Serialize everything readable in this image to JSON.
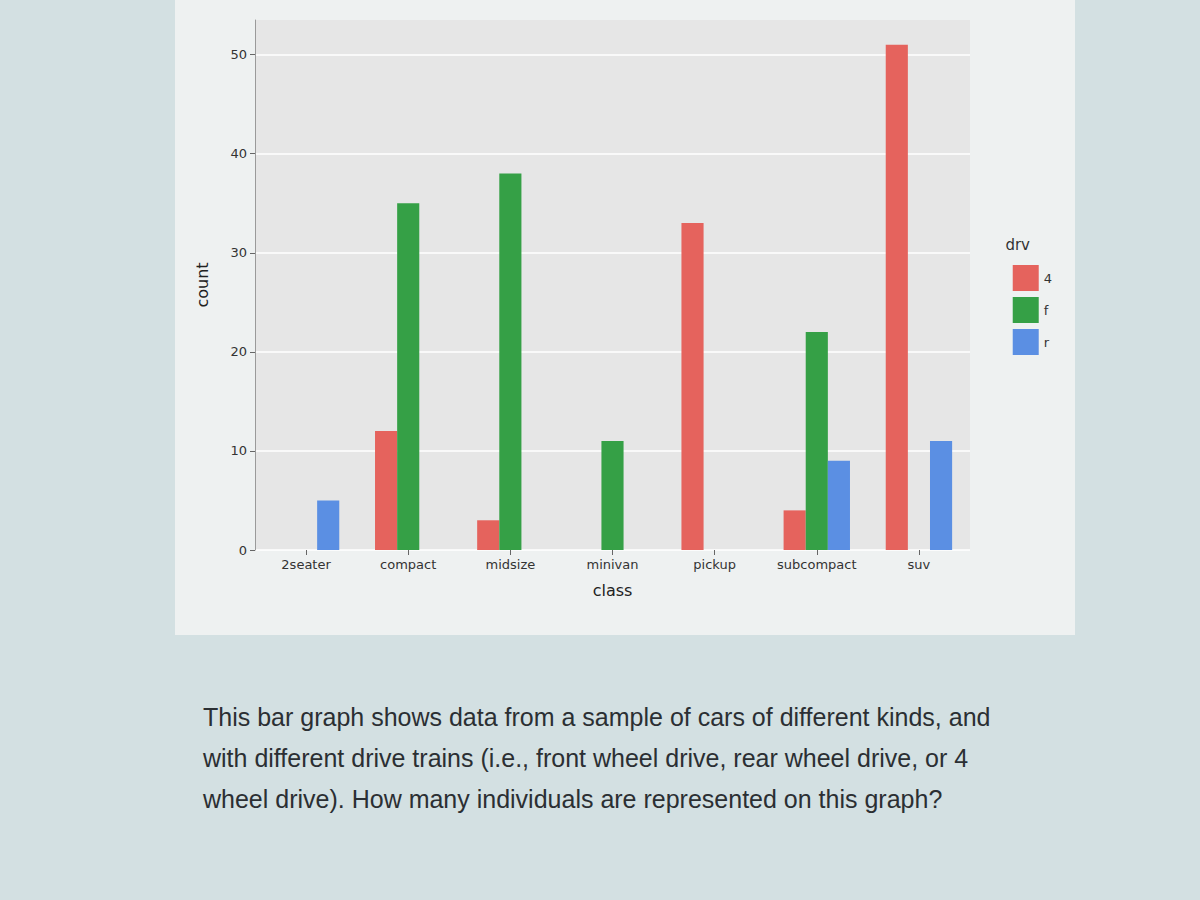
{
  "chart_data": {
    "type": "bar",
    "x_label": "class",
    "y_label": "count",
    "legend_title": "drv",
    "categories": [
      "2seater",
      "compact",
      "midsize",
      "minivan",
      "pickup",
      "subcompact",
      "suv"
    ],
    "series": [
      {
        "name": "4",
        "color": "#e5635d",
        "values": [
          null,
          12,
          3,
          null,
          33,
          4,
          51
        ]
      },
      {
        "name": "f",
        "color": "#35a046",
        "values": [
          null,
          35,
          38,
          11,
          null,
          22,
          null
        ]
      },
      {
        "name": "r",
        "color": "#5b8fe3",
        "values": [
          5,
          null,
          null,
          null,
          null,
          9,
          11
        ]
      }
    ],
    "ylim": [
      0,
      53.5
    ],
    "yticks": [
      0,
      10,
      20,
      30,
      40,
      50
    ],
    "grid": true,
    "legend": "right"
  },
  "caption": "This bar graph shows data from a sample of cars of different kinds, and with different drive trains (i.e., front wheel drive, rear wheel drive, or 4 wheel drive). How many individuals are represented on this graph?"
}
